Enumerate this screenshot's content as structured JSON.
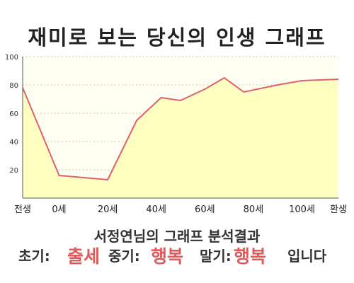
{
  "title": "재미로 보는 당신의 인생 그래프",
  "caption": "서정연님의 그래프 분석결과",
  "result": {
    "early_label": "초기:",
    "early_value": "출세",
    "mid_label": "중기:",
    "mid_value": "행복",
    "late_label": "말기:",
    "late_value": "행복",
    "suffix": "입니다"
  },
  "colors": {
    "line": "#e06070",
    "fill": "#ffffc0",
    "plot_bg": "#fffff2",
    "highlight": "#e05a5a"
  },
  "chart_data": {
    "type": "area",
    "title": "",
    "xlabel": "",
    "ylabel": "",
    "xlim": [
      -15,
      115
    ],
    "ylim": [
      0,
      100
    ],
    "y_ticks": [
      20,
      40,
      60,
      80,
      100
    ],
    "x_ticks": [
      {
        "value": -15,
        "label": "전생"
      },
      {
        "value": 0,
        "label": "0세"
      },
      {
        "value": 20,
        "label": "20세"
      },
      {
        "value": 40,
        "label": "40세"
      },
      {
        "value": 60,
        "label": "60세"
      },
      {
        "value": 80,
        "label": "80세"
      },
      {
        "value": 100,
        "label": "100세"
      },
      {
        "value": 115,
        "label": "환생"
      }
    ],
    "grid": true,
    "series": [
      {
        "x": [
          -15,
          0,
          20,
          32,
          42,
          50,
          60,
          68,
          76,
          90,
          100,
          115
        ],
        "y": [
          78,
          16,
          13,
          55,
          71,
          69,
          77,
          85,
          75,
          80,
          83,
          84
        ]
      }
    ]
  }
}
